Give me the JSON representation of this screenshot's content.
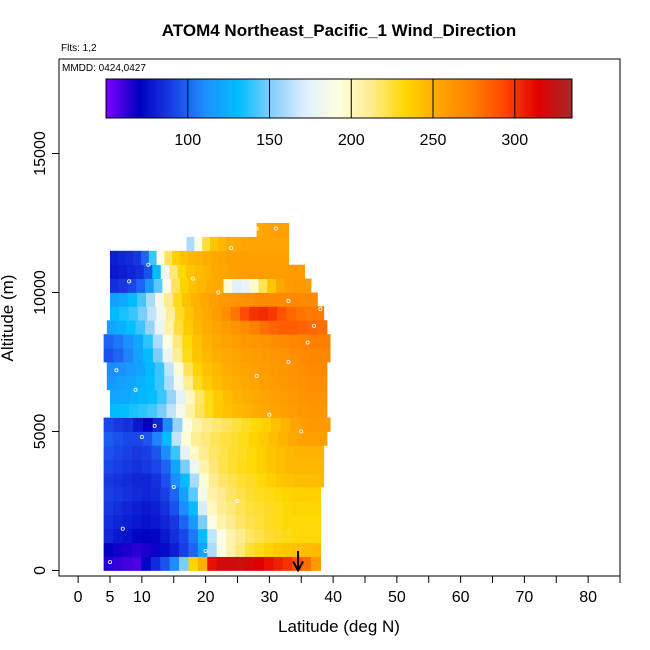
{
  "chart_data": {
    "type": "heatmap",
    "title": "ATOM4 Northeast_Pacific_1 Wind_Direction",
    "flights_label": "Flts: 1,2",
    "dates_label": "MMDD: 0424,0427",
    "xlabel": "Latitude (deg N)",
    "ylabel": "Altitude (m)",
    "xlim": [
      -3,
      85
    ],
    "ylim": [
      -200,
      18400
    ],
    "x_ticks": [
      0,
      5,
      10,
      20,
      30,
      40,
      50,
      60,
      70,
      80
    ],
    "x_minor_ticks": [
      15,
      25,
      35,
      45,
      55,
      65,
      75,
      85
    ],
    "y_ticks": [
      0,
      5000,
      10000,
      15000
    ],
    "colorbar": {
      "min": 50,
      "max": 335,
      "ticks": [
        100,
        150,
        200,
        250,
        300
      ],
      "stops": [
        "#7f00ff",
        "#0000c0",
        "#1a40e6",
        "#1e90ff",
        "#00bfff",
        "#87cefa",
        "#e0f0ff",
        "#ffffe0",
        "#ffeb8c",
        "#ffd700",
        "#ffa500",
        "#ff7f00",
        "#ff4500",
        "#e00000",
        "#a52a2a"
      ]
    },
    "layers": [
      {
        "alt_min": 0,
        "alt_max": 500,
        "lat_start": 4,
        "lat_end": 38,
        "values": [
          65,
          62,
          60,
          58,
          72,
          84,
          95,
          110,
          150,
          235,
          250,
          310,
          320,
          320,
          322,
          318,
          315,
          310,
          305,
          300,
          290,
          280,
          260
        ]
      },
      {
        "alt_min": 500,
        "alt_max": 1000,
        "lat_start": 4,
        "lat_end": 38,
        "values": [
          70,
          68,
          66,
          64,
          66,
          68,
          74,
          80,
          90,
          100,
          120,
          160,
          190,
          205,
          215,
          225,
          230,
          235,
          238,
          240,
          242,
          244,
          245
        ]
      },
      {
        "alt_min": 1000,
        "alt_max": 1500,
        "lat_start": 4,
        "lat_end": 38,
        "values": [
          82,
          78,
          76,
          72,
          70,
          72,
          78,
          85,
          92,
          105,
          130,
          165,
          190,
          205,
          212,
          218,
          222,
          226,
          228,
          230,
          232,
          232,
          232
        ]
      },
      {
        "alt_min": 1500,
        "alt_max": 2000,
        "lat_start": 4,
        "lat_end": 38,
        "values": [
          85,
          82,
          80,
          78,
          76,
          78,
          82,
          88,
          100,
          115,
          150,
          190,
          205,
          212,
          218,
          222,
          225,
          228,
          230,
          232,
          232,
          232,
          232
        ]
      },
      {
        "alt_min": 2000,
        "alt_max": 2500,
        "lat_start": 4,
        "lat_end": 38,
        "values": [
          88,
          85,
          82,
          80,
          78,
          80,
          86,
          95,
          110,
          130,
          170,
          200,
          210,
          215,
          220,
          224,
          226,
          228,
          230,
          232,
          234,
          234,
          234
        ]
      },
      {
        "alt_min": 2500,
        "alt_max": 3000,
        "lat_start": 4,
        "lat_end": 38,
        "values": [
          90,
          88,
          86,
          84,
          82,
          84,
          90,
          100,
          118,
          145,
          185,
          205,
          212,
          218,
          222,
          226,
          228,
          230,
          232,
          234,
          236,
          236,
          236
        ]
      },
      {
        "alt_min": 3000,
        "alt_max": 3500,
        "lat_start": 4,
        "lat_end": 38.5,
        "values": [
          88,
          86,
          84,
          82,
          82,
          86,
          95,
          110,
          130,
          160,
          195,
          212,
          218,
          222,
          226,
          228,
          232,
          236,
          240,
          242,
          244,
          244,
          244
        ]
      },
      {
        "alt_min": 3500,
        "alt_max": 4000,
        "lat_start": 4,
        "lat_end": 38.5,
        "values": [
          92,
          90,
          88,
          86,
          88,
          92,
          100,
          120,
          150,
          180,
          205,
          215,
          222,
          226,
          230,
          232,
          236,
          240,
          244,
          246,
          246,
          246,
          246
        ]
      },
      {
        "alt_min": 4000,
        "alt_max": 4500,
        "lat_start": 4,
        "lat_end": 38.5,
        "values": [
          95,
          92,
          90,
          88,
          90,
          96,
          110,
          140,
          175,
          200,
          212,
          218,
          222,
          226,
          228,
          232,
          236,
          240,
          244,
          246,
          248,
          248,
          248
        ]
      },
      {
        "alt_min": 4500,
        "alt_max": 5000,
        "lat_start": 4,
        "lat_end": 39,
        "values": [
          98,
          95,
          92,
          92,
          96,
          108,
          130,
          165,
          195,
          210,
          215,
          220,
          224,
          226,
          230,
          234,
          238,
          244,
          248,
          252,
          255,
          256,
          256
        ]
      },
      {
        "alt_min": 5000,
        "alt_max": 5500,
        "lat_start": 4,
        "lat_end": 39.5,
        "values": [
          92,
          88,
          86,
          78,
          70,
          82,
          110,
          155,
          190,
          205,
          212,
          216,
          220,
          224,
          228,
          232,
          236,
          242,
          248,
          254,
          258,
          260,
          260
        ]
      },
      {
        "alt_min": 5500,
        "alt_max": 6000,
        "lat_start": 5,
        "lat_end": 39,
        "values": [
          130,
          132,
          135,
          138,
          142,
          150,
          165,
          185,
          205,
          220,
          230,
          238,
          242,
          245,
          248,
          250,
          252,
          254,
          256,
          258,
          260,
          262,
          262
        ]
      },
      {
        "alt_min": 6000,
        "alt_max": 6500,
        "lat_start": 5,
        "lat_end": 39,
        "values": [
          120,
          122,
          125,
          128,
          132,
          140,
          155,
          175,
          200,
          218,
          230,
          238,
          244,
          248,
          250,
          252,
          254,
          256,
          258,
          260,
          262,
          264,
          264
        ]
      },
      {
        "alt_min": 6500,
        "alt_max": 7000,
        "lat_start": 4.5,
        "lat_end": 39,
        "values": [
          115,
          118,
          120,
          125,
          130,
          140,
          160,
          185,
          210,
          228,
          238,
          244,
          248,
          250,
          252,
          254,
          256,
          258,
          260,
          262,
          264,
          266,
          266
        ]
      },
      {
        "alt_min": 7000,
        "alt_max": 7500,
        "lat_start": 4.5,
        "lat_end": 39,
        "values": [
          110,
          112,
          115,
          120,
          128,
          140,
          165,
          195,
          220,
          235,
          242,
          246,
          250,
          252,
          254,
          256,
          258,
          260,
          262,
          264,
          266,
          268,
          268
        ]
      },
      {
        "alt_min": 7500,
        "alt_max": 8000,
        "lat_start": 4,
        "lat_end": 39.5,
        "values": [
          95,
          100,
          108,
          118,
          130,
          150,
          180,
          210,
          230,
          240,
          246,
          250,
          252,
          254,
          256,
          258,
          260,
          262,
          264,
          266,
          268,
          270,
          270
        ]
      },
      {
        "alt_min": 8000,
        "alt_max": 8500,
        "lat_start": 4,
        "lat_end": 39.5,
        "values": [
          100,
          105,
          112,
          122,
          138,
          160,
          190,
          215,
          232,
          242,
          248,
          252,
          255,
          258,
          260,
          262,
          264,
          266,
          268,
          270,
          272,
          274,
          274
        ]
      },
      {
        "alt_min": 8500,
        "alt_max": 9000,
        "lat_start": 4.5,
        "lat_end": 39,
        "values": [
          120,
          125,
          132,
          140,
          155,
          178,
          205,
          225,
          238,
          246,
          250,
          254,
          258,
          262,
          268,
          274,
          280,
          284,
          286,
          286,
          284,
          282,
          280
        ]
      },
      {
        "alt_min": 9000,
        "alt_max": 9500,
        "lat_start": 5,
        "lat_end": 38.5,
        "values": [
          130,
          135,
          140,
          150,
          165,
          185,
          210,
          228,
          240,
          248,
          252,
          258,
          266,
          278,
          292,
          300,
          302,
          298,
          290,
          282,
          278,
          276,
          276
        ]
      },
      {
        "alt_min": 9500,
        "alt_max": 10000,
        "lat_start": 5,
        "lat_end": 37.5,
        "values": [
          118,
          122,
          130,
          142,
          160,
          185,
          212,
          230,
          242,
          248,
          252,
          256,
          260,
          262,
          264,
          266,
          268,
          268,
          268,
          268,
          268,
          268,
          268
        ]
      },
      {
        "alt_min": 10000,
        "alt_max": 10500,
        "lat_start": 5,
        "lat_end": 36.5,
        "values": [
          85,
          88,
          92,
          100,
          115,
          145,
          190,
          220,
          235,
          242,
          246,
          250,
          252,
          196,
          172,
          178,
          198,
          220,
          240,
          252,
          258,
          260,
          260
        ]
      },
      {
        "alt_min": 10500,
        "alt_max": 11000,
        "lat_start": 5,
        "lat_end": 35.5,
        "values": [
          78,
          80,
          82,
          85,
          95,
          130,
          180,
          215,
          232,
          240,
          244,
          248,
          252,
          254,
          256,
          258,
          258,
          258,
          258,
          258,
          258,
          258,
          258
        ]
      },
      {
        "alt_min": 11000,
        "alt_max": 11500,
        "lat_start": 5,
        "lat_end": 33,
        "values": [
          80,
          82,
          84,
          88,
          100,
          140,
          190,
          220,
          236,
          242,
          246,
          248,
          250,
          252,
          254,
          256,
          256,
          256,
          256,
          256,
          256,
          256,
          256
        ]
      },
      {
        "alt_min": 11500,
        "alt_max": 12000,
        "lat_start": 17,
        "lat_end": 33,
        "values": [
          160,
          190,
          225,
          240,
          246,
          250,
          252,
          254,
          254,
          254,
          254,
          254,
          254
        ]
      },
      {
        "alt_min": 12000,
        "alt_max": 12500,
        "lat_start": 28,
        "lat_end": 33,
        "values": [
          252,
          254,
          256,
          256,
          256
        ]
      }
    ],
    "flight_points": [
      {
        "lat": 5,
        "alt": 300
      },
      {
        "lat": 7,
        "alt": 1500
      },
      {
        "lat": 10,
        "alt": 4800
      },
      {
        "lat": 12,
        "alt": 5200
      },
      {
        "lat": 18,
        "alt": 4300
      },
      {
        "lat": 20,
        "alt": 700
      },
      {
        "lat": 28,
        "alt": 7000
      },
      {
        "lat": 33,
        "alt": 7500
      },
      {
        "lat": 35,
        "alt": 5000
      },
      {
        "lat": 36,
        "alt": 8200
      },
      {
        "lat": 37,
        "alt": 8800
      },
      {
        "lat": 38,
        "alt": 9400
      },
      {
        "lat": 6,
        "alt": 7200
      },
      {
        "lat": 8,
        "alt": 10400
      },
      {
        "lat": 11,
        "alt": 11000
      },
      {
        "lat": 14,
        "alt": 10800
      },
      {
        "lat": 18,
        "alt": 10500
      },
      {
        "lat": 22,
        "alt": 10000
      },
      {
        "lat": 24,
        "alt": 11600
      },
      {
        "lat": 28,
        "alt": 12300
      },
      {
        "lat": 31,
        "alt": 12300
      },
      {
        "lat": 33,
        "alt": 9700
      },
      {
        "lat": 15,
        "alt": 3000
      },
      {
        "lat": 25,
        "alt": 2500
      },
      {
        "lat": 30,
        "alt": 5600
      },
      {
        "lat": 9,
        "alt": 6500
      }
    ],
    "arrow": {
      "lat": 34.5,
      "alt_top": 700,
      "alt_bottom": 0
    }
  }
}
